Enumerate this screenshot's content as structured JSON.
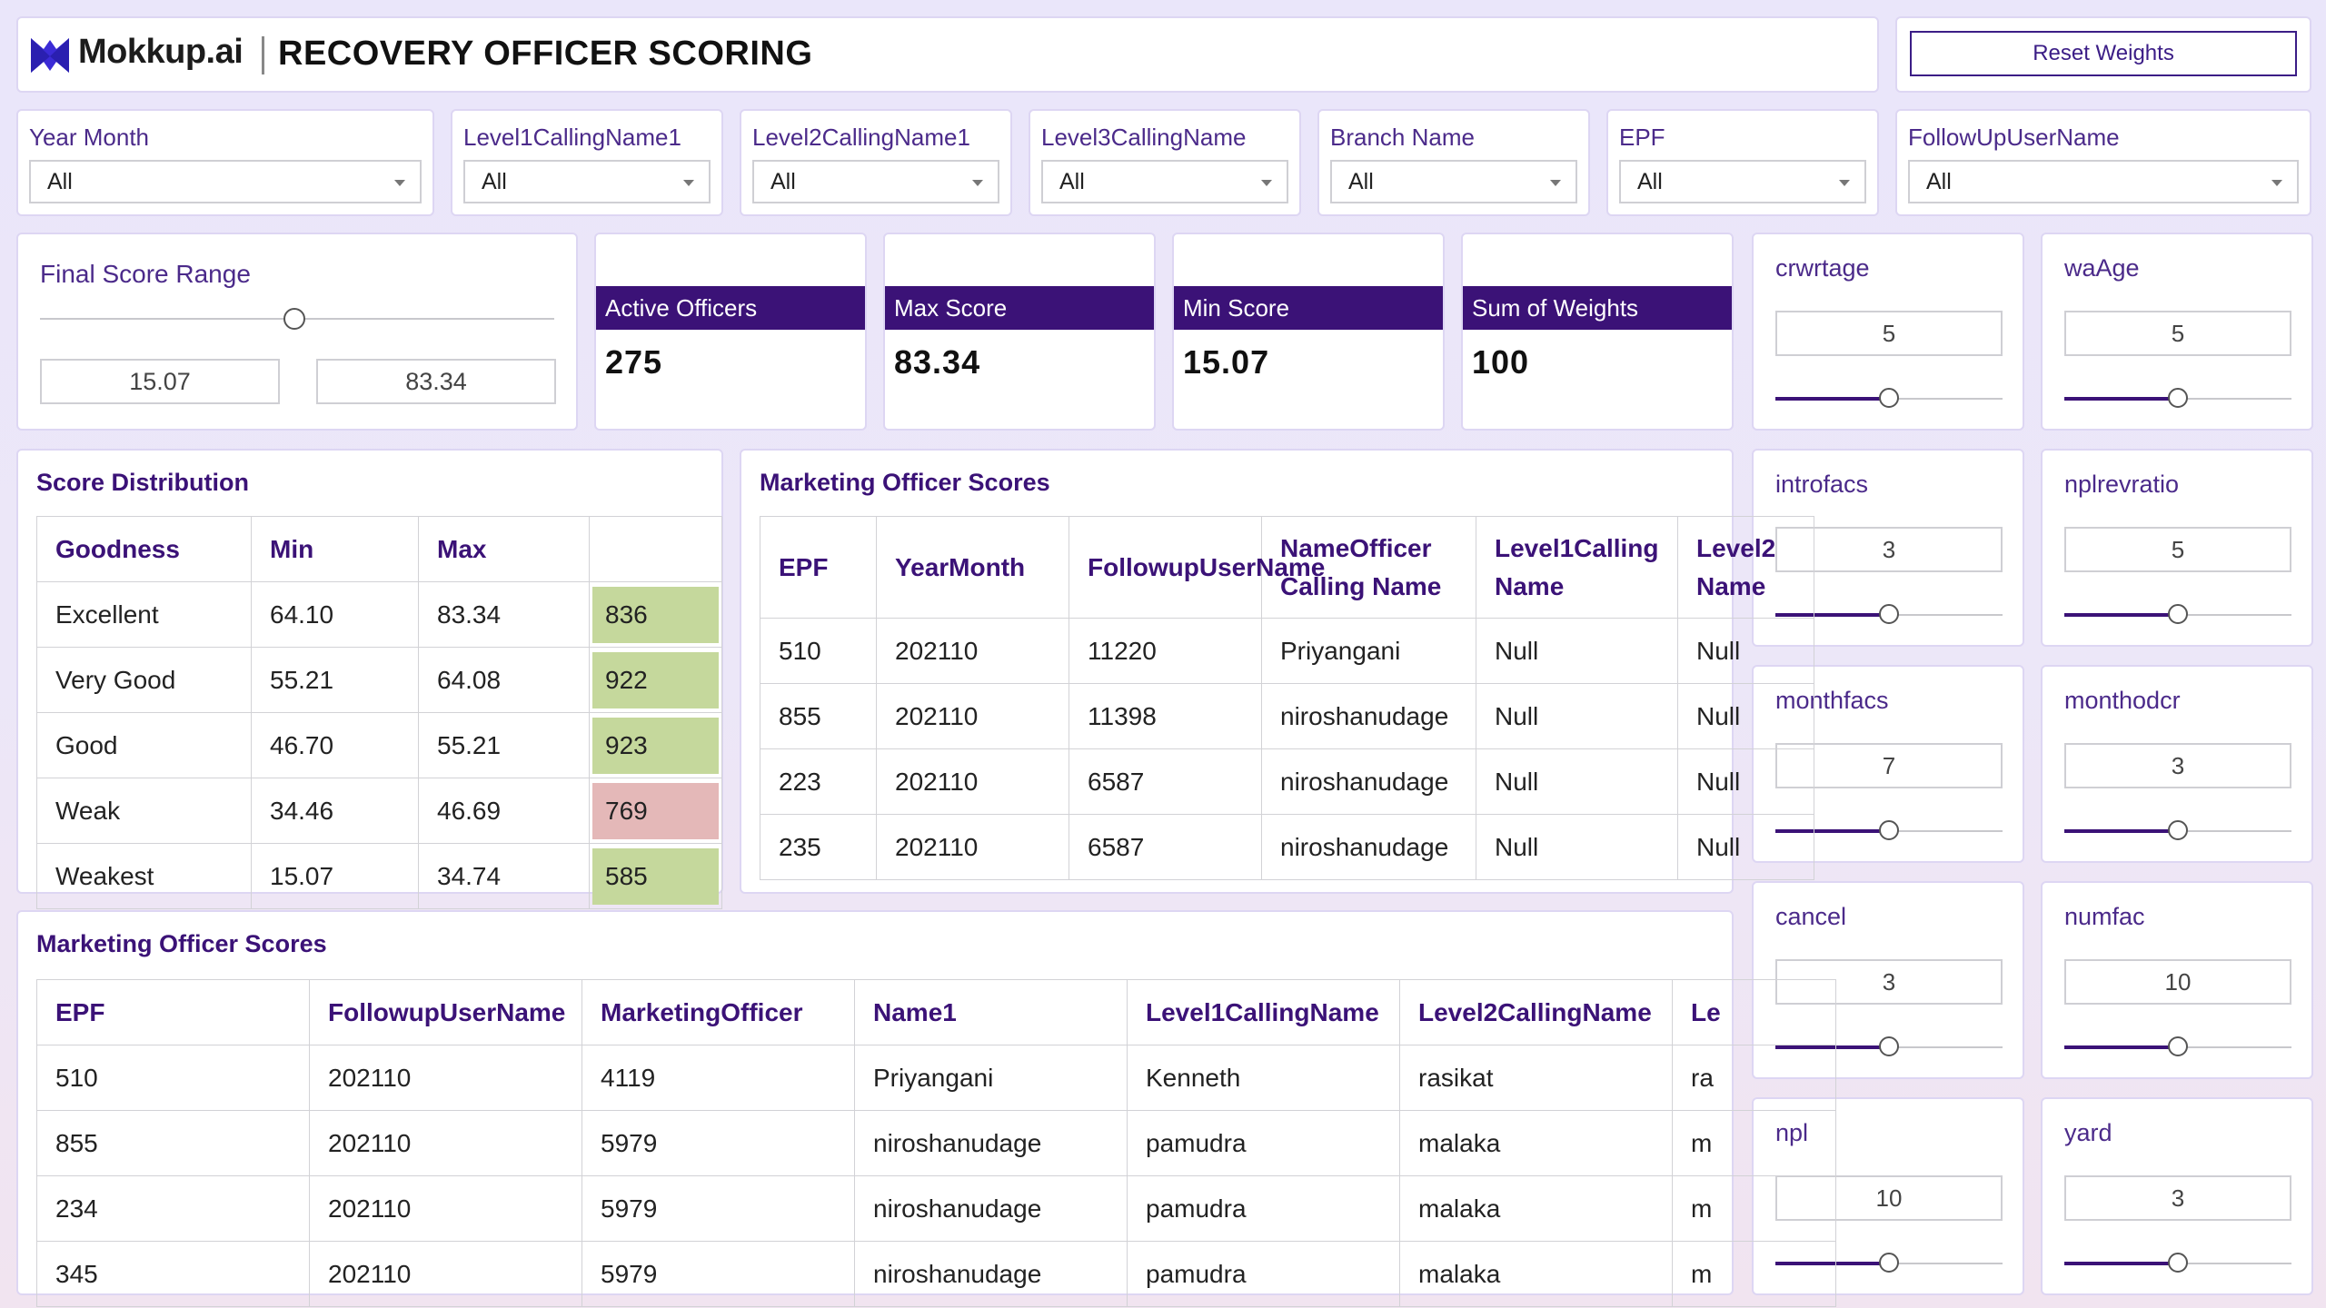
{
  "header": {
    "logo_text": "Mokkup.ai",
    "title": "RECOVERY OFFICER SCORING",
    "reset_label": "Reset Weights"
  },
  "filters": [
    {
      "label": "Year Month",
      "value": "All"
    },
    {
      "label": "Level1CallingName1",
      "value": "All"
    },
    {
      "label": "Level2CallingName1",
      "value": "All"
    },
    {
      "label": "Level3CallingName",
      "value": "All"
    },
    {
      "label": "Branch Name",
      "value": "All"
    },
    {
      "label": "EPF",
      "value": "All"
    },
    {
      "label": "FollowUpUserName",
      "value": "All"
    }
  ],
  "range": {
    "title": "Final Score Range",
    "min": "15.07",
    "max": "83.34"
  },
  "kpis": [
    {
      "label": "Active Officers",
      "value": "275"
    },
    {
      "label": "Max Score",
      "value": "83.34"
    },
    {
      "label": "Min Score",
      "value": "15.07"
    },
    {
      "label": "Sum of Weights",
      "value": "100"
    }
  ],
  "weights": [
    {
      "name": "crwrtage",
      "value": "5",
      "level": 0.5
    },
    {
      "name": "waAge",
      "value": "5",
      "level": 0.5
    },
    {
      "name": "introfacs",
      "value": "3",
      "level": 0.5
    },
    {
      "name": "nplrevratio",
      "value": "5",
      "level": 0.5
    },
    {
      "name": "monthfacs",
      "value": "7",
      "level": 0.5
    },
    {
      "name": "monthodcr",
      "value": "3",
      "level": 0.5
    },
    {
      "name": "cancel",
      "value": "3",
      "level": 0.5
    },
    {
      "name": "numfac",
      "value": "10",
      "level": 0.5
    },
    {
      "name": "npl",
      "value": "10",
      "level": 0.5
    },
    {
      "name": "yard",
      "value": "3",
      "level": 0.5
    }
  ],
  "distribution": {
    "title": "Score Distribution",
    "headers": [
      "Goodness",
      "Min",
      "Max",
      ""
    ],
    "rows": [
      {
        "goodness": "Excellent",
        "min": "64.10",
        "max": "83.34",
        "count": "836",
        "color": "#c5d89c"
      },
      {
        "goodness": "Very Good",
        "min": "55.21",
        "max": "64.08",
        "count": "922",
        "color": "#c5d89c"
      },
      {
        "goodness": "Good",
        "min": "46.70",
        "max": "55.21",
        "count": "923",
        "color": "#c5d89c"
      },
      {
        "goodness": "Weak",
        "min": "34.46",
        "max": "46.69",
        "count": "769",
        "color": "#e4b8b8"
      },
      {
        "goodness": "Weakest",
        "min": "15.07",
        "max": "34.74",
        "count": "585",
        "color": "#c5d89c"
      }
    ]
  },
  "officer_scores_top": {
    "title": "Marketing Officer Scores",
    "headers": [
      "EPF",
      "YearMonth",
      "FollowupUserName",
      "NameOfficer Calling Name",
      "Level1Calling Name",
      "Level2 Name"
    ],
    "rows": [
      [
        "510",
        "202110",
        "11220",
        "Priyangani",
        "Null",
        "Null"
      ],
      [
        "855",
        "202110",
        "11398",
        "niroshanudage",
        "Null",
        "Null"
      ],
      [
        "223",
        "202110",
        "6587",
        "niroshanudage",
        "Null",
        "Null"
      ],
      [
        "235",
        "202110",
        "6587",
        "niroshanudage",
        "Null",
        "Null"
      ]
    ]
  },
  "officer_scores_bottom": {
    "title": "Marketing Officer Scores",
    "headers": [
      "EPF",
      "FollowupUserName",
      "MarketingOfficer",
      "Name1",
      "Level1CallingName",
      "Level2CallingName",
      "Le"
    ],
    "rows": [
      [
        "510",
        "202110",
        "4119",
        "Priyangani",
        "Kenneth",
        "rasikat",
        "ra"
      ],
      [
        "855",
        "202110",
        "5979",
        "niroshanudage",
        "pamudra",
        "malaka",
        "m"
      ],
      [
        "234",
        "202110",
        "5979",
        "niroshanudage",
        "pamudra",
        "malaka",
        "m"
      ],
      [
        "345",
        "202110",
        "5979",
        "niroshanudage",
        "pamudra",
        "malaka",
        "m"
      ]
    ]
  }
}
